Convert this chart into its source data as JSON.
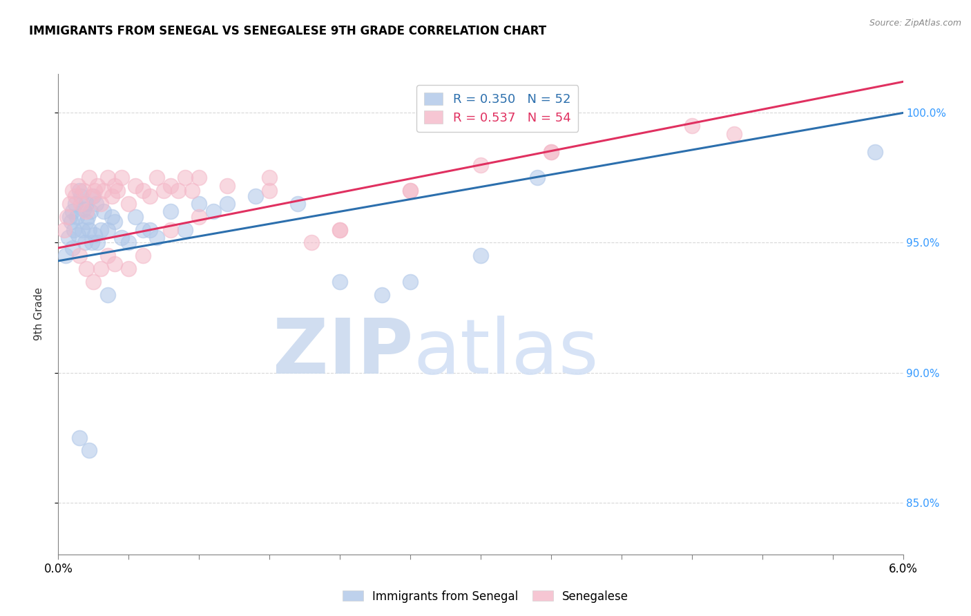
{
  "title": "IMMIGRANTS FROM SENEGAL VS SENEGALESE 9TH GRADE CORRELATION CHART",
  "source": "Source: ZipAtlas.com",
  "ylabel": "9th Grade",
  "blue_label": "Immigrants from Senegal",
  "pink_label": "Senegalese",
  "blue_R": 0.35,
  "blue_N": 52,
  "pink_R": 0.537,
  "pink_N": 54,
  "blue_color": "#aec6e8",
  "pink_color": "#f4b8c8",
  "blue_line_color": "#2c6fad",
  "pink_line_color": "#e03060",
  "xmin": 0.0,
  "xmax": 6.0,
  "ymin": 83.0,
  "ymax": 101.5,
  "blue_line_x0": 0.0,
  "blue_line_y0": 94.3,
  "blue_line_x1": 6.0,
  "blue_line_y1": 100.0,
  "pink_line_x0": 0.0,
  "pink_line_y0": 94.8,
  "pink_line_x1": 6.0,
  "pink_line_y1": 101.2,
  "blue_scatter_x": [
    0.05,
    0.07,
    0.08,
    0.09,
    0.1,
    0.1,
    0.11,
    0.12,
    0.13,
    0.14,
    0.15,
    0.16,
    0.17,
    0.18,
    0.19,
    0.2,
    0.2,
    0.21,
    0.22,
    0.23,
    0.24,
    0.25,
    0.26,
    0.27,
    0.28,
    0.3,
    0.32,
    0.35,
    0.38,
    0.4,
    0.45,
    0.5,
    0.55,
    0.6,
    0.65,
    0.7,
    0.8,
    0.9,
    1.0,
    1.1,
    1.2,
    1.4,
    1.7,
    2.0,
    2.3,
    2.5,
    3.0,
    3.4,
    0.15,
    0.22,
    0.35,
    5.8
  ],
  "blue_scatter_y": [
    94.5,
    95.2,
    96.0,
    95.8,
    96.2,
    94.8,
    95.5,
    96.5,
    96.0,
    95.3,
    97.0,
    96.8,
    95.5,
    96.3,
    95.0,
    96.5,
    95.8,
    96.0,
    95.5,
    96.2,
    95.0,
    96.8,
    95.3,
    96.5,
    95.0,
    95.5,
    96.2,
    95.5,
    96.0,
    95.8,
    95.2,
    95.0,
    96.0,
    95.5,
    95.5,
    95.2,
    96.2,
    95.5,
    96.5,
    96.2,
    96.5,
    96.8,
    96.5,
    93.5,
    93.0,
    93.5,
    94.5,
    97.5,
    87.5,
    87.0,
    93.0,
    98.5
  ],
  "pink_scatter_x": [
    0.04,
    0.06,
    0.08,
    0.1,
    0.12,
    0.14,
    0.16,
    0.18,
    0.2,
    0.22,
    0.24,
    0.26,
    0.28,
    0.3,
    0.32,
    0.35,
    0.38,
    0.4,
    0.42,
    0.45,
    0.5,
    0.55,
    0.6,
    0.65,
    0.7,
    0.75,
    0.8,
    0.85,
    0.9,
    0.95,
    1.0,
    1.2,
    1.5,
    1.8,
    2.0,
    2.5,
    3.0,
    3.5,
    4.5,
    0.15,
    0.2,
    0.25,
    0.3,
    0.35,
    0.4,
    0.5,
    0.6,
    0.8,
    1.0,
    1.5,
    2.0,
    2.5,
    3.5,
    4.8
  ],
  "pink_scatter_y": [
    95.5,
    96.0,
    96.5,
    97.0,
    96.8,
    97.2,
    96.5,
    97.0,
    96.2,
    97.5,
    96.8,
    97.0,
    97.2,
    96.5,
    97.0,
    97.5,
    96.8,
    97.2,
    97.0,
    97.5,
    96.5,
    97.2,
    97.0,
    96.8,
    97.5,
    97.0,
    97.2,
    97.0,
    97.5,
    97.0,
    97.5,
    97.2,
    97.5,
    95.0,
    95.5,
    97.0,
    98.0,
    98.5,
    99.5,
    94.5,
    94.0,
    93.5,
    94.0,
    94.5,
    94.2,
    94.0,
    94.5,
    95.5,
    96.0,
    97.0,
    95.5,
    97.0,
    98.5,
    99.2
  ],
  "watermark_zip": "ZIP",
  "watermark_atlas": "atlas",
  "background_color": "#ffffff",
  "grid_color": "#d8d8d8",
  "right_axis_color": "#3399ff",
  "right_yticks": [
    85.0,
    90.0,
    95.0,
    100.0
  ],
  "right_ylabels": [
    "85.0%",
    "90.0%",
    "95.0%",
    "100.0%"
  ]
}
